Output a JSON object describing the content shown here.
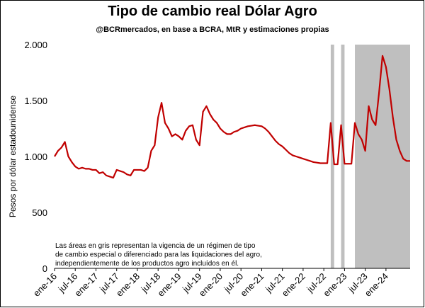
{
  "chart_data": {
    "type": "line",
    "title": "Tipo de cambio real Dólar Agro",
    "subtitle": "@BCRmercados, en base a BCRA, MtR y estimaciones propias",
    "y_label": "Pesos por dólar estadounidense",
    "note": [
      "Las áreas en gris representan la vigencia de un régimen de tipo",
      "de cambio especial o diferenciado para las liquidaciones del agro,",
      "independientemente de los productos agro incluídos en él."
    ],
    "x": [
      "2016-01",
      "2016-02",
      "2016-03",
      "2016-04",
      "2016-05",
      "2016-06",
      "2016-07",
      "2016-08",
      "2016-09",
      "2016-10",
      "2016-11",
      "2016-12",
      "2017-01",
      "2017-02",
      "2017-03",
      "2017-04",
      "2017-05",
      "2017-06",
      "2017-07",
      "2017-08",
      "2017-09",
      "2017-10",
      "2017-11",
      "2017-12",
      "2018-01",
      "2018-02",
      "2018-03",
      "2018-04",
      "2018-05",
      "2018-06",
      "2018-07",
      "2018-08",
      "2018-09",
      "2018-10",
      "2018-11",
      "2018-12",
      "2019-01",
      "2019-02",
      "2019-03",
      "2019-04",
      "2019-05",
      "2019-06",
      "2019-07",
      "2019-08",
      "2019-09",
      "2019-10",
      "2019-11",
      "2019-12",
      "2020-01",
      "2020-02",
      "2020-03",
      "2020-04",
      "2020-05",
      "2020-06",
      "2020-07",
      "2020-08",
      "2020-09",
      "2020-10",
      "2020-11",
      "2020-12",
      "2021-01",
      "2021-02",
      "2021-03",
      "2021-04",
      "2021-05",
      "2021-06",
      "2021-07",
      "2021-08",
      "2021-09",
      "2021-10",
      "2021-11",
      "2021-12",
      "2022-01",
      "2022-02",
      "2022-03",
      "2022-04",
      "2022-05",
      "2022-06",
      "2022-07",
      "2022-08",
      "2022-09",
      "2022-10",
      "2022-11",
      "2022-12",
      "2023-01",
      "2023-02",
      "2023-03",
      "2023-04",
      "2023-05",
      "2023-06",
      "2023-07",
      "2023-08",
      "2023-09",
      "2023-10",
      "2023-11",
      "2023-12",
      "2024-01",
      "2024-02",
      "2024-03",
      "2024-04",
      "2024-05",
      "2024-06",
      "2024-07",
      "2024-08"
    ],
    "series": [
      {
        "name": "Tipo de cambio real Dólar Agro",
        "color": "#c00000",
        "values": [
          1000,
          1050,
          1080,
          1130,
          1000,
          950,
          910,
          890,
          900,
          890,
          890,
          880,
          880,
          850,
          860,
          830,
          820,
          810,
          880,
          870,
          860,
          840,
          830,
          880,
          880,
          880,
          870,
          900,
          1050,
          1100,
          1350,
          1480,
          1300,
          1250,
          1180,
          1200,
          1180,
          1150,
          1230,
          1270,
          1280,
          1150,
          1100,
          1400,
          1450,
          1380,
          1330,
          1300,
          1250,
          1220,
          1200,
          1200,
          1220,
          1230,
          1250,
          1260,
          1270,
          1275,
          1280,
          1275,
          1270,
          1250,
          1220,
          1180,
          1140,
          1110,
          1090,
          1060,
          1030,
          1010,
          1000,
          990,
          980,
          970,
          960,
          950,
          945,
          940,
          940,
          940,
          1300,
          930,
          930,
          1280,
          935,
          935,
          935,
          1300,
          1200,
          1150,
          1050,
          1450,
          1330,
          1280,
          1570,
          1900,
          1800,
          1600,
          1350,
          1150,
          1050,
          980,
          960,
          960
        ]
      }
    ],
    "shaded": [
      [
        "2022-09",
        "2022-10"
      ],
      [
        "2022-12",
        "2023-01"
      ],
      [
        "2023-04",
        "2024-08"
      ]
    ],
    "shade_color": "#bfbfbf",
    "xlim": [
      "2016-01",
      "2024-08"
    ],
    "xticks": [
      {
        "value": "2016-01",
        "label": "ene-16"
      },
      {
        "value": "2016-07",
        "label": "jul-16"
      },
      {
        "value": "2017-01",
        "label": "ene-17"
      },
      {
        "value": "2017-07",
        "label": "jul-17"
      },
      {
        "value": "2018-01",
        "label": "ene-18"
      },
      {
        "value": "2018-07",
        "label": "jul-18"
      },
      {
        "value": "2019-01",
        "label": "ene-19"
      },
      {
        "value": "2019-07",
        "label": "jul-19"
      },
      {
        "value": "2020-01",
        "label": "ene-20"
      },
      {
        "value": "2020-07",
        "label": "jul-20"
      },
      {
        "value": "2021-01",
        "label": "ene-21"
      },
      {
        "value": "2021-07",
        "label": "jul-21"
      },
      {
        "value": "2022-01",
        "label": "ene-22"
      },
      {
        "value": "2022-07",
        "label": "jul-22"
      },
      {
        "value": "2023-01",
        "label": "ene-23"
      },
      {
        "value": "2023-07",
        "label": "jul-23"
      },
      {
        "value": "2024-01",
        "label": "ene-24"
      }
    ],
    "ylim": [
      0,
      2000
    ],
    "yticks": [
      0,
      500,
      {
        "value": 1000,
        "label": "1.000"
      },
      {
        "value": 1500,
        "label": "1.500"
      },
      {
        "value": 2000,
        "label": "2.000"
      }
    ],
    "grid": false
  }
}
